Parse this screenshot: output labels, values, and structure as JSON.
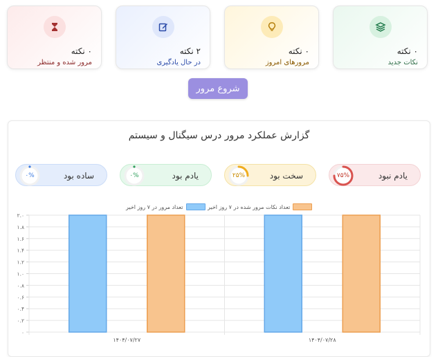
{
  "cards": [
    {
      "id": "new",
      "count": "۰ نکته",
      "label": "نکات جدید",
      "icon": "layers-icon"
    },
    {
      "id": "today",
      "count": "۰ نکته",
      "label": "مرورهای امروز",
      "icon": "lightbulb-icon"
    },
    {
      "id": "learn",
      "count": "۲ نکته",
      "label": "در حال یادگیری",
      "icon": "edit-icon"
    },
    {
      "id": "wait",
      "count": "۰ نکته",
      "label": "مرور شده و منتظر",
      "icon": "hourglass-icon"
    }
  ],
  "start_button": "شروع مرور",
  "report_title": "گزارش عملکرد مرور درس سیگنال و سیستم",
  "pills": [
    {
      "id": "forgot",
      "label": "یادم نبود",
      "pct": "۷۵%",
      "value": 0.75,
      "color": "#d9534f"
    },
    {
      "id": "hard",
      "label": "سخت بود",
      "pct": "۲۵%",
      "value": 0.25,
      "color": "#f0ad1e"
    },
    {
      "id": "remem",
      "label": "یادم بود",
      "pct": "۰%",
      "value": 0,
      "color": "#2e9e5b"
    },
    {
      "id": "easy",
      "label": "ساده بود",
      "pct": "۰%",
      "value": 0,
      "color": "#3d7be0"
    }
  ],
  "chart_data": {
    "type": "bar",
    "categories": [
      "۱۴۰۴/۰۷/۲۷",
      "۱۴۰۴/۰۷/۲۸"
    ],
    "series": [
      {
        "name": "تعداد مرور در ۷ روز اخیر",
        "values": [
          2,
          2
        ],
        "color": "#90caf9",
        "stroke": "#64a8e8"
      },
      {
        "name": "تعداد نکات مرور شده در ۷ روز اخیر",
        "values": [
          2,
          2
        ],
        "color": "#f8c48e",
        "stroke": "#ec9e50"
      }
    ],
    "ylim": [
      0,
      2
    ],
    "yticks": [
      "۰",
      "۰.۲",
      "۰.۴",
      "۰.۶",
      "۰.۸",
      "۱.۰",
      "۱.۲",
      "۱.۴",
      "۱.۶",
      "۱.۸",
      "۲.۰"
    ],
    "grid": true,
    "legend": "top"
  }
}
